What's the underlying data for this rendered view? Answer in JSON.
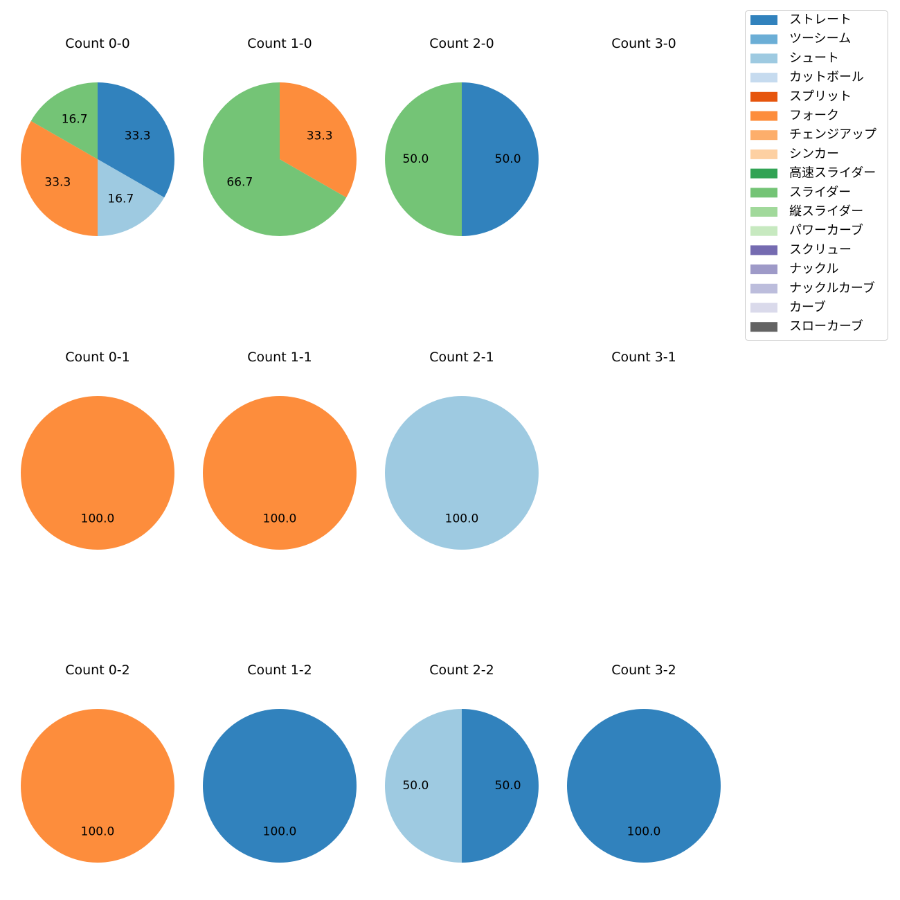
{
  "chart_data": {
    "type": "pie",
    "legend": {
      "placement": "top-right",
      "entries": [
        {
          "name": "ストレート",
          "color": "#3182bd"
        },
        {
          "name": "ツーシーム",
          "color": "#6baed6"
        },
        {
          "name": "シュート",
          "color": "#9ecae1"
        },
        {
          "name": "カットボール",
          "color": "#c6dbef"
        },
        {
          "name": "スプリット",
          "color": "#e6550d"
        },
        {
          "name": "フォーク",
          "color": "#fd8d3c"
        },
        {
          "name": "チェンジアップ",
          "color": "#fdae6b"
        },
        {
          "name": "シンカー",
          "color": "#fdd0a2"
        },
        {
          "name": "高速スライダー",
          "color": "#31a354"
        },
        {
          "name": "スライダー",
          "color": "#74c476"
        },
        {
          "name": "縦スライダー",
          "color": "#a1d99b"
        },
        {
          "name": "パワーカーブ",
          "color": "#c7e9c0"
        },
        {
          "name": "スクリュー",
          "color": "#756bb1"
        },
        {
          "name": "ナックル",
          "color": "#9e9ac8"
        },
        {
          "name": "ナックルカーブ",
          "color": "#bcbddc"
        },
        {
          "name": "カーブ",
          "color": "#dadaeb"
        },
        {
          "name": "スローカーブ",
          "color": "#636363"
        }
      ]
    },
    "panels": [
      {
        "title": "Count 0-0",
        "slices": [
          {
            "pitch": "ストレート",
            "value": 33.3,
            "label": "33.3"
          },
          {
            "pitch": "シュート",
            "value": 16.7,
            "label": "16.7"
          },
          {
            "pitch": "フォーク",
            "value": 33.3,
            "label": "33.3"
          },
          {
            "pitch": "スライダー",
            "value": 16.7,
            "label": "16.7"
          }
        ]
      },
      {
        "title": "Count 1-0",
        "slices": [
          {
            "pitch": "フォーク",
            "value": 33.3,
            "label": "33.3"
          },
          {
            "pitch": "スライダー",
            "value": 66.7,
            "label": "66.7"
          }
        ]
      },
      {
        "title": "Count 2-0",
        "slices": [
          {
            "pitch": "ストレート",
            "value": 50.0,
            "label": "50.0"
          },
          {
            "pitch": "スライダー",
            "value": 50.0,
            "label": "50.0"
          }
        ]
      },
      {
        "title": "Count 3-0",
        "slices": []
      },
      {
        "title": "Count 0-1",
        "slices": [
          {
            "pitch": "フォーク",
            "value": 100.0,
            "label": "100.0"
          }
        ]
      },
      {
        "title": "Count 1-1",
        "slices": [
          {
            "pitch": "フォーク",
            "value": 100.0,
            "label": "100.0"
          }
        ]
      },
      {
        "title": "Count 2-1",
        "slices": [
          {
            "pitch": "シュート",
            "value": 100.0,
            "label": "100.0"
          }
        ]
      },
      {
        "title": "Count 3-1",
        "slices": []
      },
      {
        "title": "Count 0-2",
        "slices": [
          {
            "pitch": "フォーク",
            "value": 100.0,
            "label": "100.0"
          }
        ]
      },
      {
        "title": "Count 1-2",
        "slices": [
          {
            "pitch": "ストレート",
            "value": 100.0,
            "label": "100.0"
          }
        ]
      },
      {
        "title": "Count 2-2",
        "slices": [
          {
            "pitch": "ストレート",
            "value": 50.0,
            "label": "50.0"
          },
          {
            "pitch": "シュート",
            "value": 50.0,
            "label": "50.0"
          }
        ]
      },
      {
        "title": "Count 3-2",
        "slices": [
          {
            "pitch": "ストレート",
            "value": 100.0,
            "label": "100.0"
          }
        ]
      }
    ]
  }
}
